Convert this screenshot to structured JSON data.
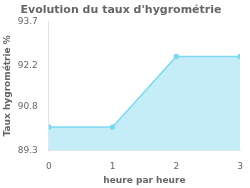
{
  "chart_data": {
    "type": "area",
    "title": "Evolution du taux d'hygrométrie",
    "xlabel": "heure par heure",
    "ylabel": "Taux hygrométrie %",
    "x": [
      0,
      1,
      2,
      3
    ],
    "values": [
      90.1,
      90.1,
      92.5,
      92.5
    ],
    "color": "#7dd8f0",
    "xlim": [
      0,
      3
    ],
    "xticks": [
      0,
      1,
      2,
      3
    ],
    "ylim": [
      89.3,
      93.7
    ],
    "yticks": [
      89.3,
      90.8,
      92.2,
      93.7
    ],
    "grid": false
  }
}
